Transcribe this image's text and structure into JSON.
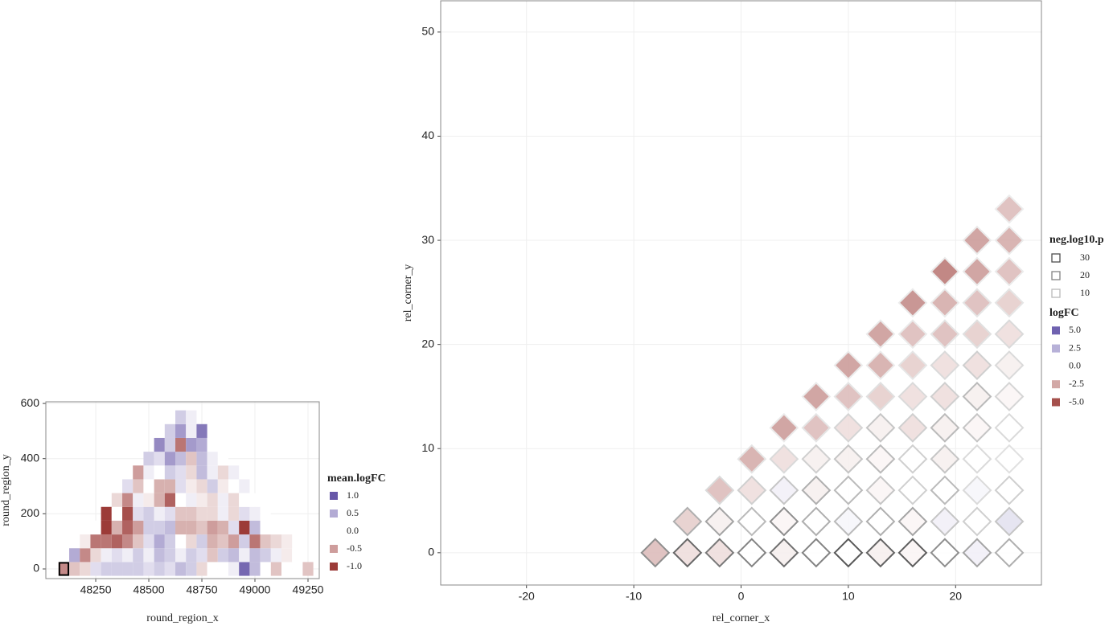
{
  "chart_data": [
    {
      "type": "heatmap",
      "x_label": "round_region_x",
      "y_label": "round_region_y",
      "x": [
        48100,
        48150,
        48200,
        48250,
        48300,
        48350,
        48400,
        48450,
        48500,
        48550,
        48600,
        48650,
        48700,
        48750,
        48800,
        48850,
        48900,
        48950,
        49000,
        49050,
        49100,
        49150,
        49200,
        49250
      ],
      "y": [
        0,
        50,
        100,
        150,
        200,
        250,
        300,
        350,
        400,
        450,
        500,
        550
      ],
      "z": [
        [
          -0.6,
          -0.3,
          -0.2,
          0.2,
          0.3,
          0.3,
          0.3,
          0.3,
          0.2,
          0.3,
          0.2,
          0.4,
          0.3,
          -0.2,
          0.0,
          0.0,
          0.1,
          0.9,
          0.4,
          0.0,
          -0.3,
          0.0,
          0.0,
          -0.3
        ],
        [
          null,
          0.5,
          -0.6,
          -0.2,
          0.1,
          0.2,
          0.1,
          0.3,
          0.1,
          0.4,
          0.3,
          0.1,
          0.3,
          0.2,
          -0.3,
          0.3,
          0.4,
          0.1,
          0.4,
          0.3,
          0.1,
          -0.1,
          0.0,
          null
        ],
        [
          null,
          null,
          -0.1,
          -0.7,
          -0.7,
          -0.8,
          -0.6,
          -0.3,
          0.2,
          0.5,
          0.3,
          0.0,
          -0.2,
          0.3,
          -0.4,
          -0.3,
          -0.5,
          0.3,
          -0.7,
          -0.3,
          -0.2,
          -0.1,
          null,
          null
        ],
        [
          null,
          null,
          null,
          0.0,
          -1.0,
          -0.4,
          -0.8,
          -0.5,
          0.3,
          0.3,
          0.4,
          -0.4,
          -0.4,
          -0.3,
          -0.5,
          -0.4,
          0.2,
          -1.0,
          0.4,
          0.0,
          0.0,
          null,
          null,
          null
        ],
        [
          null,
          null,
          null,
          null,
          -1.0,
          0.0,
          -0.9,
          0.2,
          0.3,
          0.1,
          0.2,
          -0.3,
          -0.3,
          -0.2,
          -0.2,
          0.1,
          -0.2,
          0.2,
          0.1,
          0.0,
          null,
          null,
          null,
          null
        ],
        [
          null,
          null,
          null,
          null,
          null,
          -0.2,
          -0.6,
          0.1,
          -0.1,
          -0.4,
          -0.8,
          0.0,
          0.1,
          -0.1,
          -0.2,
          0.1,
          -0.2,
          0.0,
          0.0,
          null,
          null,
          null,
          null,
          null
        ],
        [
          null,
          null,
          null,
          null,
          null,
          null,
          0.2,
          -0.3,
          0.0,
          -0.4,
          -0.4,
          0.2,
          -0.1,
          -0.2,
          0.3,
          -0.1,
          0.0,
          0.1,
          null,
          null,
          null,
          null,
          null,
          null
        ],
        [
          null,
          null,
          null,
          null,
          null,
          null,
          null,
          -0.5,
          0.1,
          0.0,
          0.3,
          0.2,
          -0.2,
          0.4,
          0.1,
          -0.2,
          0.1,
          null,
          null,
          null,
          null,
          null,
          null,
          null
        ],
        [
          null,
          null,
          null,
          null,
          null,
          null,
          null,
          null,
          0.3,
          0.2,
          0.6,
          0.4,
          -0.3,
          0.4,
          0.1,
          0.0,
          null,
          null,
          null,
          null,
          null,
          null,
          null,
          null
        ],
        [
          null,
          null,
          null,
          null,
          null,
          null,
          null,
          null,
          null,
          0.7,
          0.3,
          -0.7,
          0.6,
          0.5,
          0.0,
          null,
          null,
          null,
          null,
          null,
          null,
          null,
          null,
          null
        ],
        [
          null,
          null,
          null,
          null,
          null,
          null,
          null,
          null,
          null,
          null,
          0.3,
          0.6,
          0.1,
          0.8,
          null,
          null,
          null,
          null,
          null,
          null,
          null,
          null,
          null,
          null
        ],
        [
          null,
          null,
          null,
          null,
          null,
          null,
          null,
          null,
          null,
          null,
          null,
          0.3,
          0.1,
          null,
          null,
          null,
          null,
          null,
          null,
          null,
          null,
          null,
          null,
          null
        ]
      ],
      "xlim": [
        48015,
        49303
      ],
      "ylim": [
        -35,
        606
      ],
      "xticks": [
        48250,
        48500,
        48750,
        49000,
        49250
      ],
      "yticks": [
        0,
        200,
        400,
        600
      ],
      "grid": true,
      "highlight": {
        "x": 48100,
        "y": 0
      },
      "colors": {
        "low": "#9c3b38",
        "mid": "#ffffff",
        "high": "#6757a8"
      },
      "clim": [
        -1,
        1
      ],
      "legend": {
        "title": "mean.logFC",
        "entries": [
          {
            "value": 1,
            "label": "1.0"
          },
          {
            "value": 0.5,
            "label": "0.5"
          },
          {
            "value": 0,
            "label": "0.0"
          },
          {
            "value": -0.5,
            "label": "-0.5"
          },
          {
            "value": -1,
            "label": "-1.0"
          }
        ]
      }
    },
    {
      "type": "diamond-scatter",
      "x_label": "rel_corner_x",
      "y_label": "rel_corner_y",
      "x": [
        -8,
        -5,
        -2,
        1,
        4,
        7,
        10,
        13,
        16,
        19,
        22,
        25,
        -5,
        -2,
        1,
        4,
        7,
        10,
        13,
        16,
        19,
        22,
        25,
        -2,
        1,
        4,
        7,
        10,
        13,
        16,
        19,
        22,
        25,
        1,
        4,
        7,
        10,
        13,
        16,
        19,
        22,
        25,
        4,
        7,
        10,
        13,
        16,
        19,
        22,
        25,
        7,
        10,
        13,
        16,
        19,
        22,
        25,
        10,
        13,
        16,
        19,
        22,
        25,
        13,
        16,
        19,
        22,
        25,
        16,
        19,
        22,
        25,
        19,
        22,
        25,
        22,
        25,
        25
      ],
      "y": [
        0,
        0,
        0,
        0,
        0,
        0,
        0,
        0,
        0,
        0,
        0,
        0,
        3,
        3,
        3,
        3,
        3,
        3,
        3,
        3,
        3,
        3,
        3,
        6,
        6,
        6,
        6,
        6,
        6,
        6,
        6,
        6,
        6,
        9,
        9,
        9,
        9,
        9,
        9,
        9,
        9,
        9,
        12,
        12,
        12,
        12,
        12,
        12,
        12,
        12,
        15,
        15,
        15,
        15,
        15,
        15,
        15,
        18,
        18,
        18,
        18,
        18,
        18,
        21,
        21,
        21,
        21,
        21,
        24,
        24,
        24,
        24,
        27,
        27,
        27,
        30,
        30,
        33
      ],
      "logFC": [
        -2,
        -1,
        -1,
        0,
        -0.5,
        0,
        0,
        -0.5,
        -0.3,
        0,
        0.5,
        0,
        -1.5,
        -0.5,
        0,
        -0.3,
        0,
        0.3,
        0,
        -0.3,
        0.5,
        0,
        1,
        -2,
        -1,
        0.5,
        -0.5,
        0,
        -0.3,
        0,
        0,
        0.3,
        0,
        -2.5,
        -1,
        -0.5,
        -0.5,
        -0.3,
        0,
        -0.5,
        0,
        0,
        -3,
        -2,
        -1,
        -0.5,
        -1,
        -0.5,
        -0.3,
        0,
        -3,
        -2,
        -1.5,
        -1,
        -1,
        -0.5,
        -0.3,
        -3,
        -2.5,
        -1.5,
        -1,
        -1,
        -0.5,
        -3,
        -2,
        -2,
        -1.5,
        -1,
        -3.5,
        -2.5,
        -2,
        -1.5,
        -4,
        -3,
        -2,
        -3,
        -2.5,
        -2
      ],
      "neg_log10_p": [
        18,
        25,
        22,
        20,
        24,
        20,
        28,
        26,
        27,
        18,
        14,
        12,
        12,
        14,
        10,
        18,
        12,
        10,
        12,
        14,
        8,
        6,
        8,
        4,
        6,
        8,
        12,
        10,
        8,
        6,
        10,
        4,
        6,
        2,
        4,
        6,
        8,
        10,
        6,
        8,
        4,
        3,
        1,
        2,
        5,
        8,
        6,
        10,
        8,
        4,
        1,
        2,
        3,
        4,
        6,
        10,
        5,
        1,
        1,
        2,
        4,
        6,
        4,
        1,
        1,
        2,
        3,
        4,
        1,
        1,
        2,
        2,
        1,
        1,
        1,
        1,
        1,
        0.5
      ],
      "xlim": [
        -28,
        28
      ],
      "ylim": [
        -3.1,
        53
      ],
      "xticks": [
        -20,
        -10,
        0,
        10,
        20
      ],
      "yticks": [
        0,
        10,
        20,
        30,
        40,
        50
      ],
      "grid": true,
      "colors": {
        "low": "#a5504c",
        "mid": "#ffffff",
        "high": "#6f62b0"
      },
      "clim": [
        -5,
        5
      ],
      "plim": [
        0,
        35
      ],
      "size_legend": {
        "title": "neg.log10.p",
        "entries": [
          30,
          20,
          10
        ]
      },
      "legend": {
        "title": "logFC",
        "entries": [
          {
            "value": 5,
            "label": "5.0"
          },
          {
            "value": 2.5,
            "label": "2.5"
          },
          {
            "value": 0,
            "label": "0.0"
          },
          {
            "value": -2.5,
            "label": "-2.5"
          },
          {
            "value": -5,
            "label": "-5.0"
          }
        ]
      }
    }
  ]
}
